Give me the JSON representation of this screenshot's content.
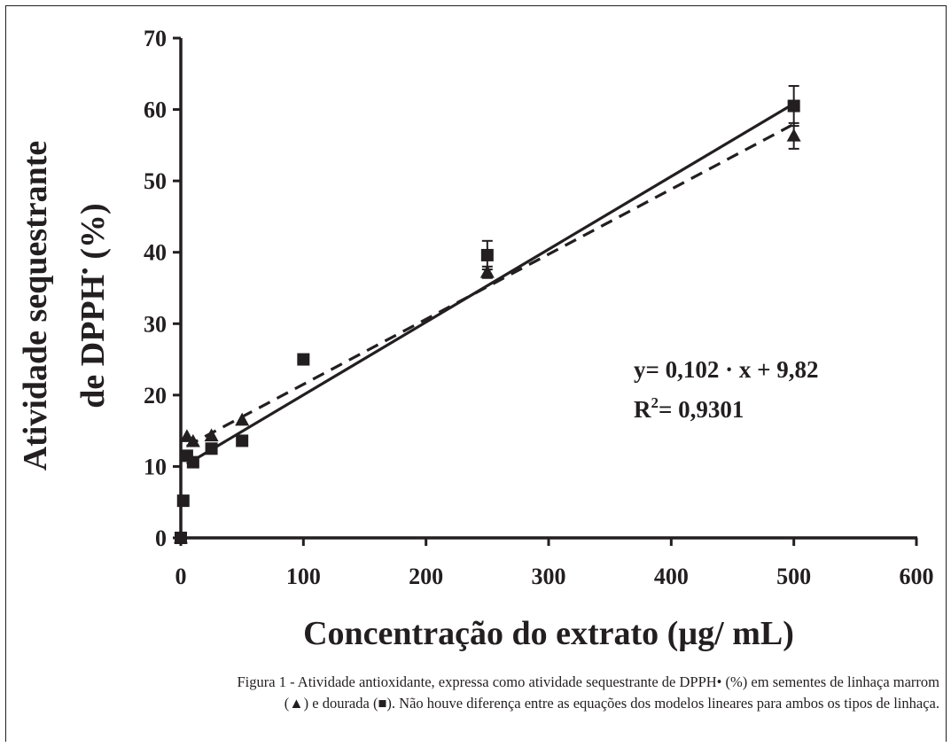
{
  "chart_data": {
    "type": "scatter",
    "xlabel": "Concentração do extrato (µg/ mL)",
    "ylabel_line1": "Atividade sequestrante",
    "ylabel_line2": "de DPPH",
    "ylabel_line2_suffix": " (%)",
    "ylabel_superscript": "•",
    "xlim": [
      0,
      600
    ],
    "ylim": [
      0,
      70
    ],
    "xticks": [
      0,
      100,
      200,
      300,
      400,
      500,
      600
    ],
    "yticks": [
      0,
      10,
      20,
      30,
      40,
      50,
      60,
      70
    ],
    "grid": false,
    "series": [
      {
        "marker": "triangle",
        "fit_line": "dashed",
        "x": [
          0,
          5,
          10,
          25,
          50,
          250,
          500
        ],
        "y": [
          0,
          14.2,
          13.5,
          14.3,
          16.5,
          37.2,
          56.3
        ],
        "error": [
          0,
          0,
          0,
          0,
          0,
          0.8,
          1.8
        ],
        "fit": {
          "slope": 0.0911,
          "intercept": 12.4
        }
      },
      {
        "marker": "square",
        "fit_line": "solid",
        "x": [
          0,
          2,
          5,
          10,
          25,
          50,
          100,
          250,
          500
        ],
        "y": [
          0,
          5.2,
          11.5,
          10.6,
          12.5,
          13.6,
          25,
          39.6,
          60.5
        ],
        "error": [
          0,
          0,
          0,
          0,
          0,
          0,
          0,
          2,
          2.8
        ],
        "fit": {
          "slope": 0.102,
          "intercept": 9.82
        }
      }
    ],
    "annotations": {
      "equation": "y= 0,102 · x + 9,82",
      "r2_prefix": "R",
      "r2_exp": "2",
      "r2_value": "= 0,9301"
    }
  },
  "caption": {
    "line1": "Figura 1 - Atividade antioxidante, expressa como atividade sequestrante de DPPH• (%) em sementes de linhaça marrom",
    "line2": "(▲) e dourada (■). Não houve diferença entre as equações dos modelos lineares para ambos os tipos de linhaça."
  }
}
